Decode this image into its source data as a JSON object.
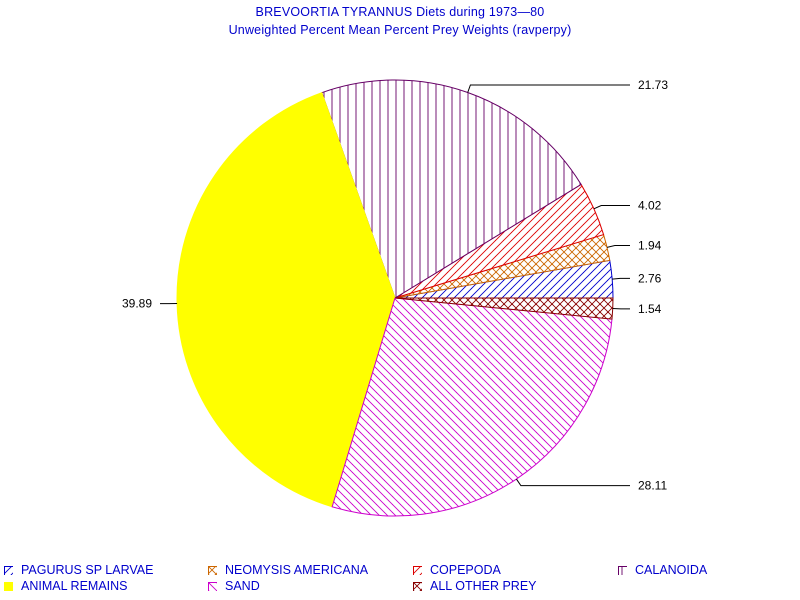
{
  "chart_data": {
    "type": "pie",
    "title": "BREVOORTIA TYRANNUS Diets during 1973—80",
    "subtitle": "Unweighted Percent Mean Percent Prey  Weights (ravperpy)",
    "slices": [
      {
        "name": "PAGURUS SP LARVAE",
        "value": 2.76,
        "label": "2.76",
        "color": "#0000cc",
        "pattern": "diag-up",
        "fill": "#ffffff"
      },
      {
        "name": "NEOMYSIS AMERICANA",
        "value": 1.94,
        "label": "1.94",
        "color": "#cc6600",
        "pattern": "cross",
        "fill": "#ffffff"
      },
      {
        "name": "COPEPODA",
        "value": 4.02,
        "label": "4.02",
        "color": "#dd0000",
        "pattern": "diag-up",
        "fill": "#ffffff"
      },
      {
        "name": "CALANOIDA",
        "value": 21.73,
        "label": "21.73",
        "color": "#660066",
        "pattern": "vertical",
        "fill": "#ffffff"
      },
      {
        "name": "ANIMAL REMAINS",
        "value": 39.89,
        "label": "39.89",
        "color": "#ffff00",
        "pattern": "solid",
        "fill": "#ffff00"
      },
      {
        "name": "SAND",
        "value": 28.11,
        "label": "28.11",
        "color": "#cc00cc",
        "pattern": "diag-down",
        "fill": "#ffffff"
      },
      {
        "name": "ALL OTHER PREY",
        "value": 1.54,
        "label": "1.54",
        "color": "#880000",
        "pattern": "cross",
        "fill": "#ffffff"
      }
    ],
    "legend_position": "bottom"
  }
}
